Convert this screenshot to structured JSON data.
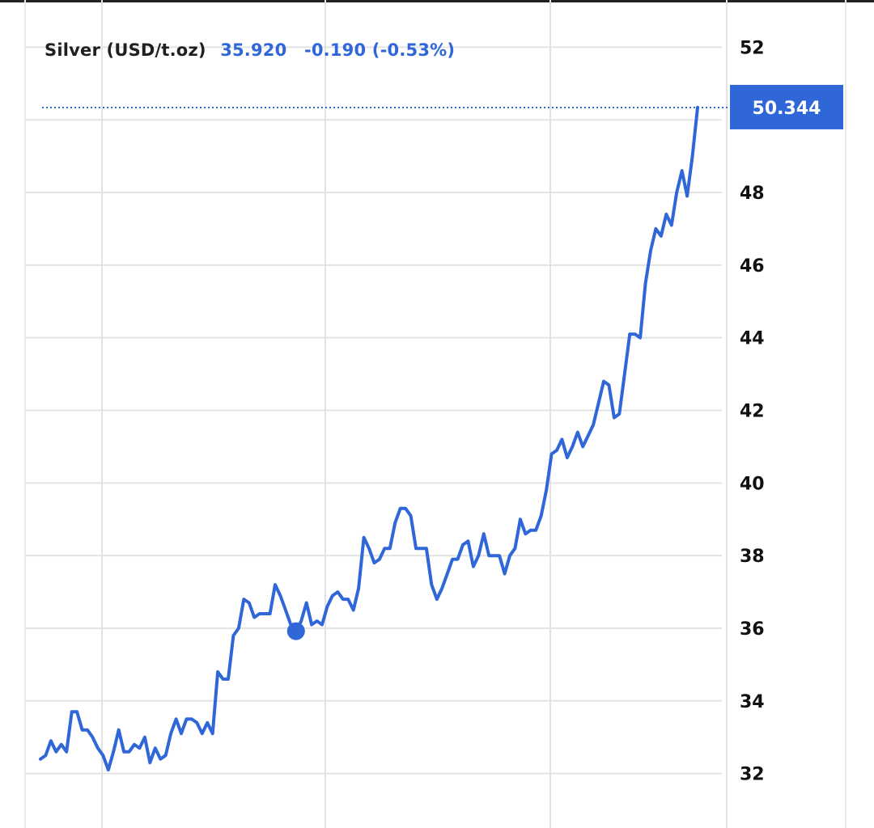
{
  "legend": {
    "name": "Silver (USD/t.oz)",
    "price": "35.920",
    "change": "-0.190 (-0.53%)"
  },
  "colors": {
    "line": "#2f66d8",
    "accent_tag": "#2f66d8",
    "grid": "#e3e3e3",
    "text": "#111111"
  },
  "chart_data": {
    "type": "line",
    "series": [
      {
        "values": [
          32.4,
          32.5,
          32.9,
          32.6,
          32.8,
          32.6,
          33.7,
          33.7,
          33.2,
          33.2,
          33.0,
          32.7,
          32.5,
          32.1,
          32.6,
          33.2,
          32.6,
          32.6,
          32.8,
          32.7,
          33.0,
          32.3,
          32.7,
          32.4,
          32.5,
          33.1,
          33.5,
          33.1,
          33.5,
          33.5,
          33.4,
          33.1,
          33.4,
          33.1,
          34.8,
          34.6,
          34.6,
          35.8,
          36.0,
          36.8,
          36.7,
          36.3,
          36.4,
          36.4,
          36.4,
          37.2,
          36.9,
          36.5,
          36.1,
          35.9,
          36.2,
          36.7,
          36.1,
          36.2,
          36.1,
          36.6,
          36.9,
          37.0,
          36.8,
          36.8,
          36.5,
          37.1,
          38.5,
          38.2,
          37.8,
          37.9,
          38.2,
          38.2,
          38.9,
          39.3,
          39.3,
          39.1,
          38.2,
          38.2,
          38.2,
          37.2,
          36.8,
          37.1,
          37.5,
          37.9,
          37.9,
          38.3,
          38.4,
          37.7,
          38.0,
          38.6,
          38.0,
          38.0,
          38.0,
          37.5,
          38.0,
          38.2,
          39.0,
          38.6,
          38.7,
          38.7,
          39.1,
          39.8,
          40.8,
          40.9,
          41.2,
          40.7,
          41.0,
          41.4,
          41.0,
          41.3,
          41.6,
          42.2,
          42.8,
          42.7,
          41.8,
          41.9,
          43.0,
          44.1,
          44.1,
          44.0,
          45.5,
          46.4,
          47.0,
          46.8,
          47.4,
          47.1,
          48.0,
          48.6,
          47.9,
          49.0,
          50.34
        ]
      }
    ],
    "current_value_label": "50.344",
    "marker_value": 35.92,
    "yticks": [
      "32",
      "34",
      "36",
      "38",
      "40",
      "42",
      "44",
      "46",
      "48",
      "52"
    ],
    "ylim": [
      30.5,
      53.3
    ],
    "y_axis_position": "right",
    "grid": true,
    "title": "",
    "xlabel": "",
    "ylabel": ""
  }
}
